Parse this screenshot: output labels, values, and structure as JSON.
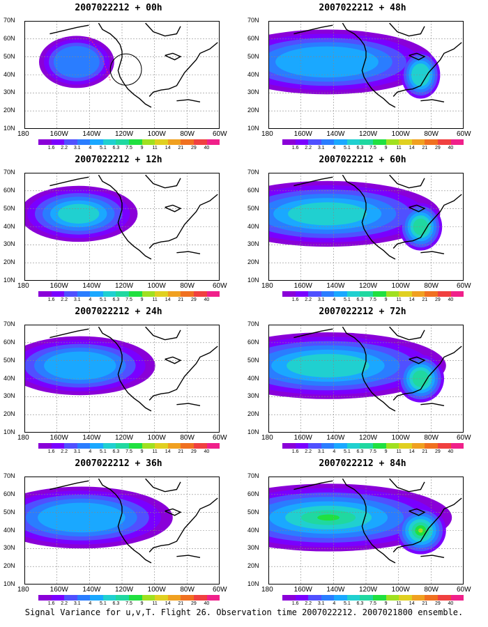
{
  "figure": {
    "caption": "Signal Variance for u,v,T. Flight 26. Observation time 2007022212. 2007021800 ensemble."
  },
  "panels": [
    {
      "title": "2007022212 + 00h",
      "lead_hours": 0,
      "spread": 0.35,
      "peak_level": 3,
      "observation_track": true
    },
    {
      "title": "2007022212 + 48h",
      "lead_hours": 48,
      "spread": 1.0,
      "peak_level": 4,
      "observation_track": false
    },
    {
      "title": "2007022212 + 12h",
      "lead_hours": 12,
      "spread": 0.55,
      "peak_level": 5,
      "observation_track": false
    },
    {
      "title": "2007022212 + 60h",
      "lead_hours": 60,
      "spread": 1.05,
      "peak_level": 5,
      "observation_track": false
    },
    {
      "title": "2007022212 + 24h",
      "lead_hours": 24,
      "spread": 0.7,
      "peak_level": 4,
      "observation_track": false
    },
    {
      "title": "2007022212 + 72h",
      "lead_hours": 72,
      "spread": 1.1,
      "peak_level": 5,
      "observation_track": false
    },
    {
      "title": "2007022212 + 36h",
      "lead_hours": 36,
      "spread": 0.85,
      "peak_level": 4,
      "observation_track": false
    },
    {
      "title": "2007022212 + 84h",
      "lead_hours": 84,
      "spread": 1.15,
      "peak_level": 7,
      "observation_track": false
    }
  ],
  "axes": {
    "x_ticks": [
      "180",
      "160W",
      "140W",
      "120W",
      "100W",
      "80W",
      "60W"
    ],
    "y_ticks": [
      "70N",
      "60N",
      "50N",
      "40N",
      "30N",
      "20N",
      "10N"
    ]
  },
  "colorbar": {
    "labels": [
      "1.6",
      "2.2",
      "3.1",
      "4",
      "5.1",
      "6.3",
      "7.5",
      "9",
      "11",
      "14",
      "21",
      "29",
      "40"
    ],
    "colors": [
      "#8a00d8",
      "#7a00ff",
      "#5050ff",
      "#2a7dff",
      "#1aa8ff",
      "#20d0d0",
      "#20d8a0",
      "#20e040",
      "#a0e020",
      "#e0d020",
      "#f0a020",
      "#f07020",
      "#f04040",
      "#f0208a"
    ]
  }
}
